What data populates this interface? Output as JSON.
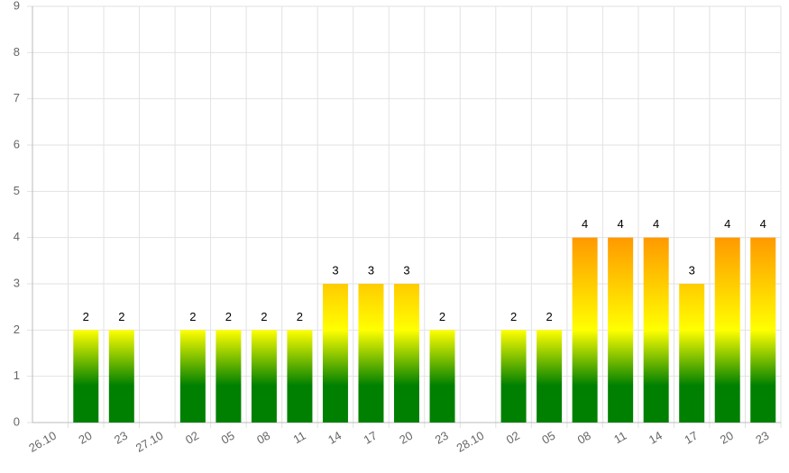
{
  "chart_data": {
    "type": "bar",
    "categories": [
      "26.10",
      "20",
      "23",
      "27.10",
      "02",
      "05",
      "08",
      "11",
      "14",
      "17",
      "20",
      "23",
      "28.10",
      "02",
      "05",
      "08",
      "11",
      "14",
      "17",
      "20",
      "23"
    ],
    "values": [
      null,
      2,
      2,
      null,
      2,
      2,
      2,
      2,
      3,
      3,
      3,
      2,
      null,
      2,
      2,
      4,
      4,
      4,
      3,
      4,
      4
    ],
    "ylim": [
      0,
      9
    ],
    "yticks": [
      0,
      1,
      2,
      3,
      4,
      5,
      6,
      7,
      8,
      9
    ],
    "grid": true
  }
}
